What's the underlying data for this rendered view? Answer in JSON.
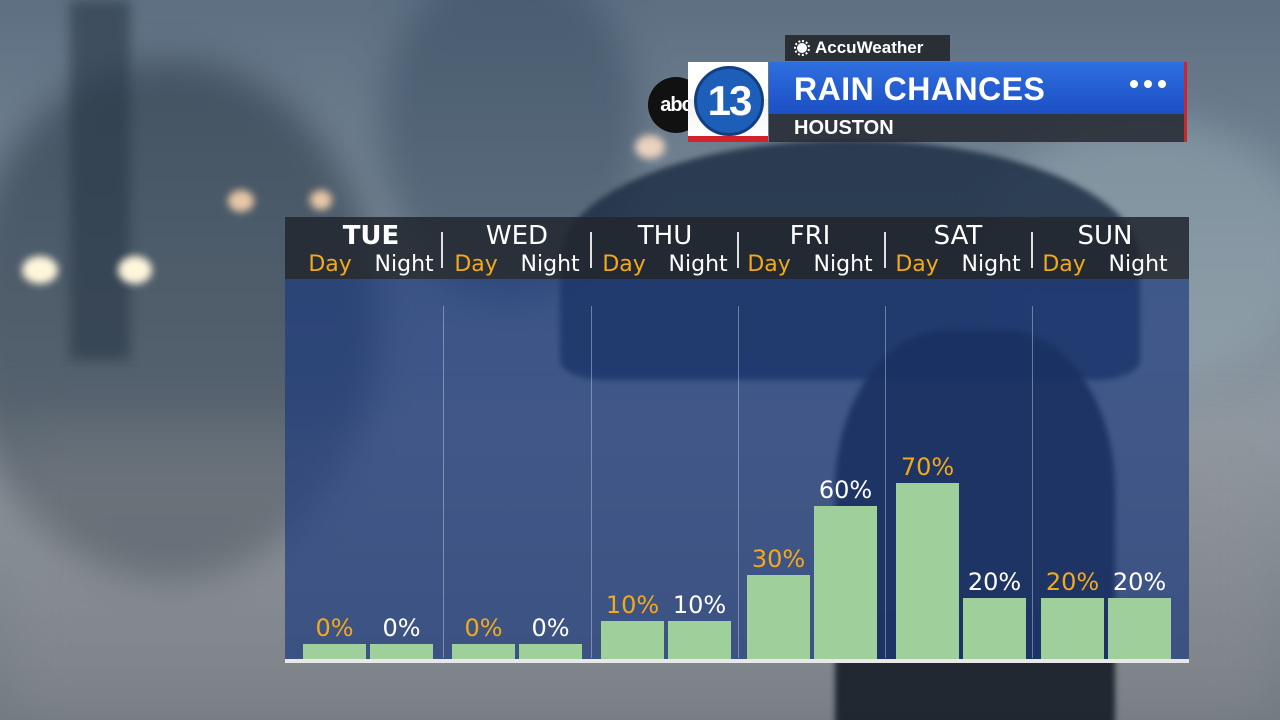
{
  "header": {
    "provider": "AccuWeather",
    "network": "abc",
    "channel": "13",
    "title": "RAIN CHANCES",
    "location": "HOUSTON"
  },
  "colors": {
    "bar": "#9fd09c",
    "day_label": "#f2a91c",
    "night_label": "#ffffff",
    "title_bar": "#2563d8",
    "accent_red": "#d2232a"
  },
  "icons": [
    "sun-icon",
    "more-dots-icon"
  ],
  "chart_data": {
    "type": "bar",
    "title": "RAIN CHANCES",
    "subtitle": "HOUSTON",
    "days": [
      {
        "name": "TUE",
        "day_label": "Day",
        "night_label": "Night"
      },
      {
        "name": "WED",
        "day_label": "Day",
        "night_label": "Night"
      },
      {
        "name": "THU",
        "day_label": "Day",
        "night_label": "Night"
      },
      {
        "name": "FRI",
        "day_label": "Day",
        "night_label": "Night"
      },
      {
        "name": "SAT",
        "day_label": "Day",
        "night_label": "Night"
      },
      {
        "name": "SUN",
        "day_label": "Day",
        "night_label": "Night"
      }
    ],
    "series": [
      {
        "name": "Day",
        "values": [
          0,
          0,
          10,
          30,
          70,
          20
        ],
        "labels": [
          "0%",
          "0%",
          "10%",
          "30%",
          "70%",
          "20%"
        ]
      },
      {
        "name": "Night",
        "values": [
          0,
          0,
          10,
          60,
          20,
          20
        ],
        "labels": [
          "0%",
          "0%",
          "10%",
          "60%",
          "20%",
          "20%"
        ]
      }
    ],
    "ylim": [
      0,
      100
    ],
    "grid": false,
    "legend": "none"
  }
}
